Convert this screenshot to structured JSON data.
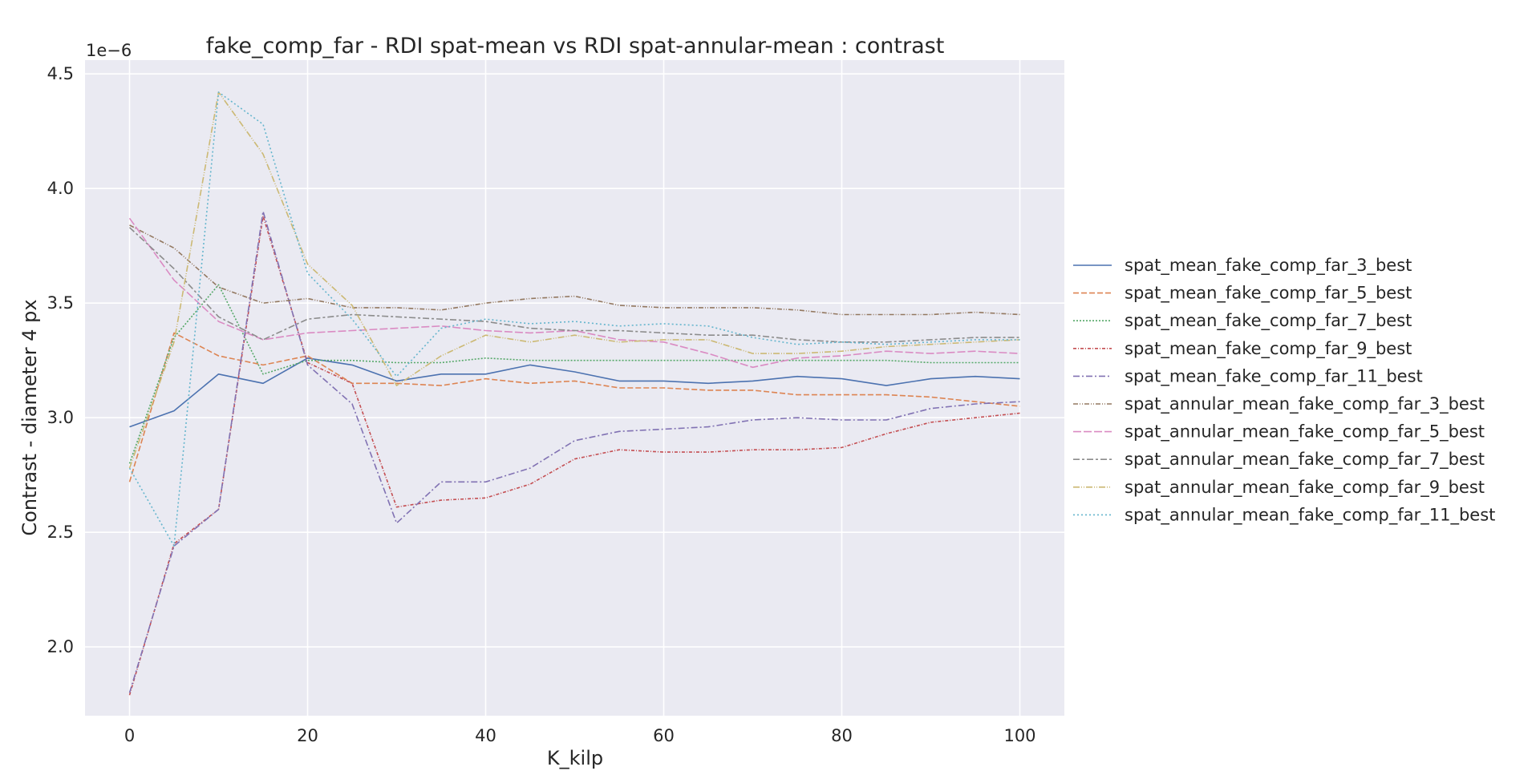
{
  "chart_data": {
    "type": "line",
    "title": "fake_comp_far - RDI spat-mean vs RDI spat-annular-mean : contrast",
    "xlabel": "K_kilp",
    "ylabel": "Contrast - diameter 4 px",
    "y_offset_label": "1e−6",
    "xlim": [
      -5,
      105
    ],
    "ylim": [
      1.7,
      4.56
    ],
    "x_ticks": [
      0,
      20,
      40,
      60,
      80,
      100
    ],
    "x_tick_labels": [
      "0",
      "20",
      "40",
      "60",
      "80",
      "100"
    ],
    "y_ticks": [
      2.0,
      2.5,
      3.0,
      3.5,
      4.0,
      4.5
    ],
    "y_tick_labels": [
      "2.0",
      "2.5",
      "3.0",
      "3.5",
      "4.0",
      "4.5"
    ],
    "y_unit": "1e-6",
    "grid": true,
    "legend_position": "right-outside",
    "x": [
      0,
      5,
      10,
      15,
      20,
      25,
      30,
      35,
      40,
      45,
      50,
      55,
      60,
      65,
      70,
      75,
      80,
      85,
      90,
      95,
      100
    ],
    "series": [
      {
        "name": "spat_mean_fake_comp_far_3_best",
        "color": "#4c72b0",
        "dash": "",
        "values": [
          2.96,
          3.03,
          3.19,
          3.15,
          3.26,
          3.23,
          3.16,
          3.19,
          3.19,
          3.23,
          3.2,
          3.16,
          3.16,
          3.15,
          3.16,
          3.18,
          3.17,
          3.14,
          3.17,
          3.18,
          3.17
        ]
      },
      {
        "name": "spat_mean_fake_comp_far_5_best",
        "color": "#dd8452",
        "dash": "7,3",
        "values": [
          2.72,
          3.37,
          3.27,
          3.23,
          3.27,
          3.15,
          3.15,
          3.14,
          3.17,
          3.15,
          3.16,
          3.13,
          3.13,
          3.12,
          3.12,
          3.1,
          3.1,
          3.1,
          3.09,
          3.07,
          3.05
        ]
      },
      {
        "name": "spat_mean_fake_comp_far_7_best",
        "color": "#55a868",
        "dash": "2,2",
        "values": [
          2.8,
          3.35,
          3.58,
          3.19,
          3.25,
          3.25,
          3.24,
          3.24,
          3.26,
          3.25,
          3.25,
          3.25,
          3.25,
          3.25,
          3.25,
          3.25,
          3.25,
          3.25,
          3.24,
          3.24,
          3.24
        ]
      },
      {
        "name": "spat_mean_fake_comp_far_9_best",
        "color": "#c44e52",
        "dash": "4,2,1,2",
        "values": [
          1.79,
          2.45,
          2.6,
          3.88,
          3.24,
          3.15,
          2.61,
          2.64,
          2.65,
          2.71,
          2.82,
          2.86,
          2.85,
          2.85,
          2.86,
          2.86,
          2.87,
          2.93,
          2.98,
          3.0,
          3.02
        ]
      },
      {
        "name": "spat_mean_fake_comp_far_11_best",
        "color": "#8172b3",
        "dash": "8,3,2,3",
        "values": [
          1.8,
          2.44,
          2.6,
          3.9,
          3.23,
          3.06,
          2.54,
          2.72,
          2.72,
          2.78,
          2.9,
          2.94,
          2.95,
          2.96,
          2.99,
          3.0,
          2.99,
          2.99,
          3.04,
          3.06,
          3.07
        ]
      },
      {
        "name": "spat_annular_mean_fake_comp_far_3_best",
        "color": "#937860",
        "dash": "6,2,1,2,1,2",
        "values": [
          3.84,
          3.74,
          3.57,
          3.5,
          3.52,
          3.48,
          3.48,
          3.47,
          3.5,
          3.52,
          3.53,
          3.49,
          3.48,
          3.48,
          3.48,
          3.47,
          3.45,
          3.45,
          3.45,
          3.46,
          3.45
        ]
      },
      {
        "name": "spat_annular_mean_fake_comp_far_5_best",
        "color": "#da8bc3",
        "dash": "10,3",
        "values": [
          3.87,
          3.6,
          3.42,
          3.34,
          3.37,
          3.38,
          3.39,
          3.4,
          3.38,
          3.37,
          3.38,
          3.34,
          3.33,
          3.28,
          3.22,
          3.26,
          3.27,
          3.29,
          3.28,
          3.29,
          3.28
        ]
      },
      {
        "name": "spat_annular_mean_fake_comp_far_7_best",
        "color": "#8c8c8c",
        "dash": "8,3,3,3",
        "values": [
          3.83,
          3.65,
          3.44,
          3.34,
          3.43,
          3.45,
          3.44,
          3.43,
          3.42,
          3.39,
          3.38,
          3.38,
          3.37,
          3.36,
          3.36,
          3.34,
          3.33,
          3.33,
          3.34,
          3.35,
          3.35
        ]
      },
      {
        "name": "spat_annular_mean_fake_comp_far_9_best",
        "color": "#ccb974",
        "dash": "8,2,1,2,1,2",
        "values": [
          2.78,
          3.33,
          4.42,
          4.15,
          3.67,
          3.49,
          3.14,
          3.27,
          3.36,
          3.33,
          3.36,
          3.33,
          3.34,
          3.34,
          3.28,
          3.28,
          3.29,
          3.31,
          3.32,
          3.33,
          3.34
        ]
      },
      {
        "name": "spat_annular_mean_fake_comp_far_11_best",
        "color": "#64b5cd",
        "dash": "2,3",
        "values": [
          2.78,
          2.44,
          4.42,
          4.28,
          3.63,
          3.43,
          3.18,
          3.39,
          3.43,
          3.41,
          3.42,
          3.4,
          3.41,
          3.4,
          3.35,
          3.32,
          3.33,
          3.32,
          3.33,
          3.34,
          3.34
        ]
      }
    ]
  }
}
